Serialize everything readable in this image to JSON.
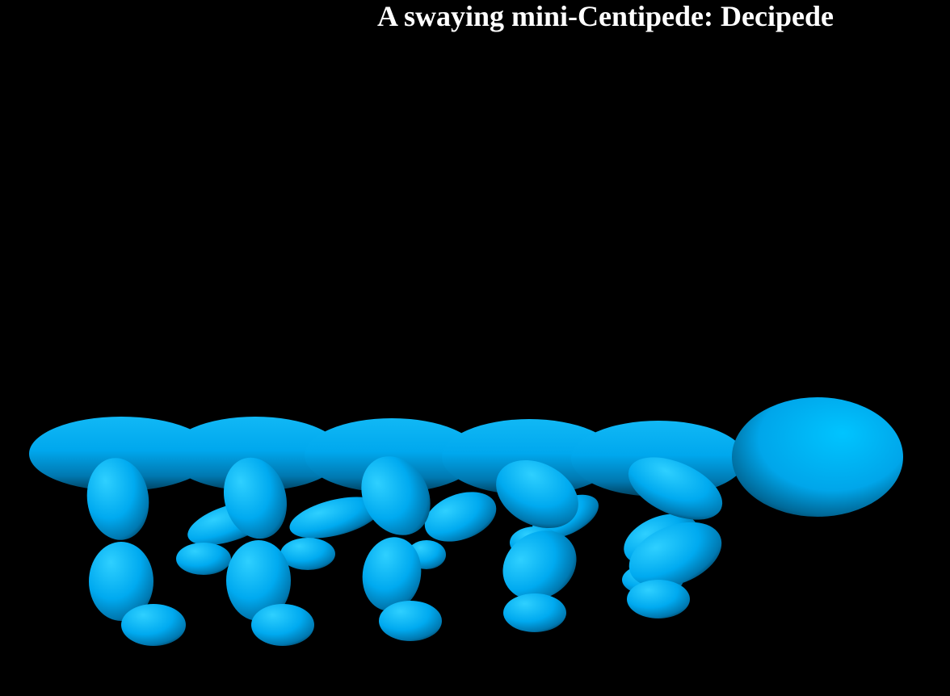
{
  "page": {
    "title": "A swaying mini-Centipede: Decipede",
    "background_color": "#000000",
    "title_color": "#ffffff"
  },
  "creature": {
    "body_color": "#00b4ff",
    "highlight_color": "#2fd0ff",
    "shadow_color": "#003a55"
  }
}
